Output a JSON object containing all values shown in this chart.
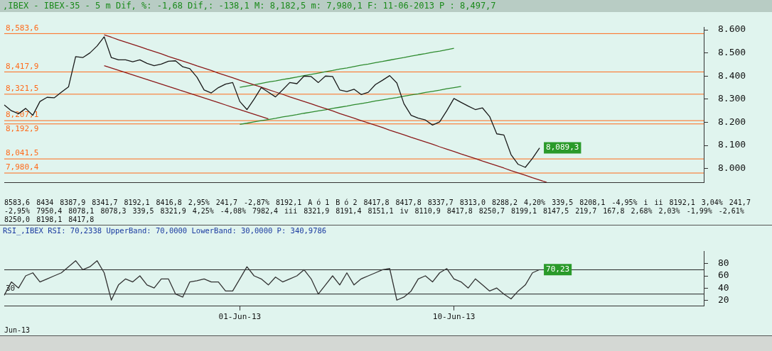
{
  "chart_data": [
    {
      "type": "line",
      "title": ",IBEX - IBEX-35 - 5 m Dif, %: -1,68 Dif,: -138,1 M: 8,182,5 m: 7,980,1 F: 11-06-2013 P : 8,497,7",
      "categories": [
        null,
        null,
        null,
        null,
        null,
        null,
        null,
        null,
        null,
        null,
        null,
        null,
        null,
        null,
        null,
        null,
        null,
        null,
        null,
        null,
        null,
        null,
        null,
        null,
        null,
        null,
        null,
        null,
        null,
        null,
        null,
        null,
        null,
        null,
        null,
        null,
        null,
        null,
        null,
        null,
        null,
        null,
        null,
        null,
        null,
        null,
        null,
        null,
        null,
        null,
        null,
        null,
        null,
        null,
        null,
        null,
        null,
        null,
        null,
        null,
        null,
        null,
        null,
        null,
        null,
        null,
        null,
        null,
        null,
        null,
        null,
        null,
        null,
        null,
        null,
        null,
        null,
        null,
        null,
        null,
        null,
        null,
        null,
        null,
        null,
        null,
        null,
        null,
        null,
        null,
        null,
        null,
        null,
        null,
        null,
        null,
        null,
        null,
        null
      ],
      "ylim": [
        7940,
        8610
      ],
      "yticks": [
        {
          "value": 8000,
          "label": "8.000"
        },
        {
          "value": 8100,
          "label": "8.100"
        },
        {
          "value": 8200,
          "label": "8.200"
        },
        {
          "value": 8300,
          "label": "8.300"
        },
        {
          "value": 8400,
          "label": "8.400"
        },
        {
          "value": 8500,
          "label": "8.500"
        },
        {
          "value": 8600,
          "label": "8.600"
        }
      ],
      "tick_labels": "y",
      "series": [
        {
          "color": "#1a1a1a",
          "values": [
            8275,
            8250,
            8237,
            8260,
            8230,
            8290,
            8308,
            8306,
            8330,
            8353,
            8484,
            8480,
            8500,
            8530,
            8570,
            8480,
            8470,
            8470,
            8462,
            8470,
            8455,
            8445,
            8452,
            8464,
            8466,
            8440,
            8432,
            8395,
            8340,
            8327,
            8350,
            8365,
            8372,
            8290,
            8255,
            8300,
            8350,
            8330,
            8310,
            8340,
            8372,
            8367,
            8400,
            8398,
            8372,
            8400,
            8398,
            8340,
            8333,
            8343,
            8320,
            8330,
            8363,
            8382,
            8402,
            8370,
            8280,
            8230,
            8218,
            8210,
            8188,
            8202,
            8250,
            8303,
            8286,
            8270,
            8255,
            8262,
            8225,
            8150,
            8145,
            8060,
            8018,
            8005,
            8044,
            8089.3,
            null,
            null,
            null,
            null,
            null,
            null,
            null,
            null,
            null,
            null,
            null,
            null,
            null,
            null,
            null,
            null,
            null,
            null,
            null,
            null,
            null,
            null,
            null
          ],
          "value_labels": [
            null,
            null,
            null,
            null,
            null,
            null,
            null,
            null,
            null,
            null,
            null,
            null,
            null,
            null,
            null,
            null,
            null,
            null,
            null,
            null,
            null,
            null,
            null,
            null,
            null,
            null,
            null,
            null,
            null,
            null,
            null,
            null,
            null,
            null,
            null,
            null,
            null,
            null,
            null,
            null,
            null,
            null,
            null,
            null,
            null,
            null,
            null,
            null,
            null,
            null,
            null,
            null,
            null,
            null,
            null,
            null,
            null,
            null,
            null,
            null,
            null,
            null,
            null,
            null,
            null,
            null,
            null,
            null,
            null,
            null,
            null,
            null,
            null,
            null,
            null,
            "8,089,3",
            null,
            null,
            null,
            null,
            null,
            null,
            null,
            null,
            null,
            null,
            null,
            null,
            null,
            null,
            null,
            null,
            null,
            null,
            null,
            null,
            null,
            null,
            null
          ]
        },
        {
          "type": "line",
          "color": "#8b1a1a",
          "values": [
            null,
            null,
            null,
            null,
            null,
            null,
            null,
            null,
            null,
            null,
            null,
            null,
            null,
            null,
            8578,
            8568,
            8557,
            8547,
            8537,
            8527,
            8516,
            8506,
            8496,
            8485,
            8475,
            8465,
            8455,
            8444,
            8434,
            8424,
            8413,
            8403,
            8393,
            8382,
            8372,
            8362,
            8352,
            8341,
            8331,
            8321,
            8310,
            8300,
            8290,
            8280,
            8269,
            8259,
            8249,
            8238,
            8228,
            8218,
            8207,
            8197,
            8187,
            8177,
            8166,
            8156,
            8146,
            8135,
            8125,
            8115,
            8105,
            8094,
            8084,
            8074,
            8063,
            8053,
            8043,
            8032,
            8022,
            8012,
            8002,
            7991,
            7981,
            7971,
            7960,
            7950,
            7940,
            null,
            null,
            null,
            null,
            null,
            null,
            null,
            null,
            null,
            null,
            null,
            null,
            null,
            null,
            null,
            null,
            null,
            null,
            null,
            null,
            null,
            null
          ]
        },
        {
          "type": "line",
          "color": "#8b1a1a",
          "values": [
            null,
            null,
            null,
            null,
            null,
            null,
            null,
            null,
            null,
            null,
            null,
            null,
            null,
            null,
            8445,
            8435,
            8425,
            8415,
            8405,
            8395,
            8385,
            8375,
            8365,
            8355,
            8345,
            8335,
            8325,
            8315,
            8305,
            8295,
            8285,
            8275,
            8265,
            8255,
            8245,
            8235,
            8225,
            8215,
            null,
            null,
            null,
            null,
            null,
            null,
            null,
            null,
            null,
            null,
            null,
            null,
            null,
            null,
            null,
            null,
            null,
            null,
            null,
            null,
            null,
            null,
            null,
            null,
            null,
            null,
            null,
            null,
            null,
            null,
            null,
            null,
            null,
            null,
            null,
            null,
            null,
            null,
            null,
            null,
            null,
            null,
            null,
            null,
            null,
            null,
            null,
            null,
            null,
            null,
            null,
            null,
            null,
            null,
            null,
            null,
            null,
            null,
            null,
            null,
            null
          ]
        },
        {
          "type": "line",
          "color": "#2e8b2e",
          "values": [
            null,
            null,
            null,
            null,
            null,
            null,
            null,
            null,
            null,
            null,
            null,
            null,
            null,
            null,
            null,
            null,
            null,
            null,
            null,
            null,
            null,
            null,
            null,
            null,
            null,
            null,
            null,
            null,
            null,
            null,
            null,
            null,
            null,
            8191,
            8196,
            8202,
            8207,
            8212,
            8217,
            8223,
            8228,
            8233,
            8239,
            8244,
            8249,
            8254,
            8260,
            8265,
            8270,
            8276,
            8281,
            8286,
            8292,
            8297,
            8302,
            8307,
            8313,
            8318,
            8323,
            8329,
            8334,
            8339,
            8345,
            8350,
            8355,
            null,
            null,
            null,
            null,
            null,
            null,
            null,
            null,
            null,
            null,
            null,
            null,
            null,
            null,
            null,
            null,
            null,
            null,
            null,
            null,
            null,
            null,
            null,
            null,
            null,
            null,
            null,
            null,
            null,
            null,
            null,
            null,
            null,
            null
          ]
        },
        {
          "type": "line",
          "color": "#2e8b2e",
          "values": [
            null,
            null,
            null,
            null,
            null,
            null,
            null,
            null,
            null,
            null,
            null,
            null,
            null,
            null,
            null,
            null,
            null,
            null,
            null,
            null,
            null,
            null,
            null,
            null,
            null,
            null,
            null,
            null,
            null,
            null,
            null,
            null,
            null,
            8351,
            8357,
            8362,
            8368,
            8374,
            8379,
            8385,
            8390,
            8396,
            8402,
            8407,
            8413,
            8419,
            8424,
            8430,
            8435,
            8441,
            8447,
            8452,
            8458,
            8463,
            8469,
            8475,
            8480,
            8486,
            8492,
            8497,
            8503,
            8508,
            8514,
            8520,
            null,
            null,
            null,
            null,
            null,
            null,
            null,
            null,
            null,
            null,
            null,
            null,
            null,
            null,
            null,
            null,
            null,
            null,
            null,
            null,
            null,
            null,
            null,
            null,
            null,
            null,
            null,
            null,
            null,
            null,
            null,
            null,
            null,
            null,
            null
          ]
        }
      ],
      "ref_lines": [
        {
          "axis": "y",
          "value": 8583.6,
          "label": "8,583,6",
          "color": "#ff6a1a"
        },
        {
          "axis": "y",
          "value": 8417.9,
          "label": "8,417,9",
          "color": "#ff6a1a"
        },
        {
          "axis": "y",
          "value": 8321.5,
          "label": "8,321,5",
          "color": "#ff6a1a"
        },
        {
          "axis": "y",
          "value": 8207.1,
          "label": "8,207,1",
          "color": "#ff6a1a"
        },
        {
          "axis": "y",
          "value": 8192.9,
          "label": "8,192,9",
          "color": "#ff6a1a"
        },
        {
          "axis": "y",
          "value": 8041.5,
          "label": "8,041,5",
          "color": "#ff6a1a"
        },
        {
          "axis": "y",
          "value": 7980.4,
          "label": "7,980,4",
          "color": "#ff6a1a"
        }
      ],
      "annotations": [
        "8583,6",
        "8434",
        "8387,9",
        "8341,7",
        "8192,1",
        "8416,8",
        "2,95%",
        "241,7",
        "-2,87%",
        "8192,1",
        "A ó 1",
        "B ó 2",
        "8417,8",
        "8417,8",
        "8337,7",
        "8313,0",
        "8288,2",
        "4,20%",
        "339,5",
        "8208,1",
        "-4,95%",
        "i",
        "ii",
        "8192,1",
        "3,04%",
        "241,7",
        "-2,95%",
        "7950,4",
        "8078,1",
        "8078,3",
        "339,5",
        "8321,9",
        "4,25%",
        "-4,08%",
        "7982,4",
        "iii",
        "8321,9",
        "8191,4",
        "8151,1",
        "iv",
        "8110,9",
        "8417,8",
        "8250,7",
        "8199,1",
        "8147,5",
        "219,7",
        "167,8",
        "2,68%",
        "2,03%",
        "-1,99%",
        "-2,61%",
        "8250,0",
        "8198,1",
        "8417,8"
      ]
    },
    {
      "type": "line",
      "title": "RSI_,IBEX RSI: 70,2338 UpperBand: 70,0000 LowerBand: 30,0000 P: 340,9786",
      "categories": [
        null,
        null,
        null,
        null,
        null,
        null,
        null,
        null,
        null,
        null,
        null,
        null,
        null,
        null,
        null,
        null,
        null,
        null,
        null,
        null,
        null,
        null,
        null,
        null,
        null,
        null,
        null,
        null,
        null,
        null,
        null,
        null,
        null,
        "01-Jun-13",
        null,
        null,
        null,
        null,
        null,
        null,
        null,
        null,
        null,
        null,
        null,
        null,
        null,
        null,
        null,
        null,
        null,
        null,
        null,
        null,
        null,
        null,
        null,
        null,
        null,
        null,
        null,
        null,
        null,
        "10-Jun-13",
        null,
        null,
        null,
        null,
        null,
        null,
        null,
        null,
        null,
        null,
        null,
        null,
        null,
        null,
        null,
        null,
        null,
        null,
        null,
        null,
        null,
        null,
        null,
        null,
        null,
        null,
        null,
        null,
        null,
        null,
        null,
        null,
        null,
        null,
        null
      ],
      "ylim": [
        10,
        100
      ],
      "yticks": [
        20,
        40,
        60,
        80
      ],
      "series": [
        {
          "color": "#333333",
          "values": [
            28,
            50,
            40,
            60,
            65,
            50,
            55,
            60,
            65,
            75,
            85,
            70,
            75,
            85,
            65,
            20,
            45,
            55,
            50,
            60,
            45,
            40,
            55,
            55,
            30,
            25,
            50,
            52,
            55,
            50,
            50,
            35,
            35,
            55,
            75,
            60,
            55,
            45,
            58,
            50,
            55,
            60,
            70,
            55,
            30,
            45,
            60,
            45,
            65,
            45,
            55,
            60,
            65,
            70,
            72,
            20,
            25,
            35,
            55,
            60,
            50,
            65,
            72,
            55,
            50,
            40,
            55,
            45,
            35,
            40,
            30,
            22,
            35,
            45,
            65,
            70.23,
            null,
            null,
            null,
            null,
            null,
            null,
            null,
            null,
            null,
            null,
            null,
            null,
            null,
            null,
            null,
            null,
            null,
            null,
            null,
            null,
            null,
            null,
            null
          ],
          "value_labels": [
            null,
            null,
            null,
            null,
            null,
            null,
            null,
            null,
            null,
            null,
            null,
            null,
            null,
            null,
            null,
            null,
            null,
            null,
            null,
            null,
            null,
            null,
            null,
            null,
            null,
            null,
            null,
            null,
            null,
            null,
            null,
            null,
            null,
            null,
            null,
            null,
            null,
            null,
            null,
            null,
            null,
            null,
            null,
            null,
            null,
            null,
            null,
            null,
            null,
            null,
            null,
            null,
            null,
            null,
            null,
            null,
            null,
            null,
            null,
            null,
            null,
            null,
            null,
            null,
            null,
            null,
            null,
            null,
            null,
            null,
            null,
            null,
            null,
            null,
            null,
            "70,23",
            null,
            null,
            null,
            null,
            null,
            null,
            null,
            null,
            null,
            null,
            null,
            null,
            null,
            null,
            null,
            null,
            null,
            null,
            null,
            null,
            null,
            null,
            null
          ]
        }
      ],
      "ref_lines": [
        {
          "axis": "y",
          "value": 70
        },
        {
          "axis": "y",
          "value": 30,
          "label": "30"
        }
      ],
      "annotations": [
        "Jun-13"
      ]
    }
  ]
}
